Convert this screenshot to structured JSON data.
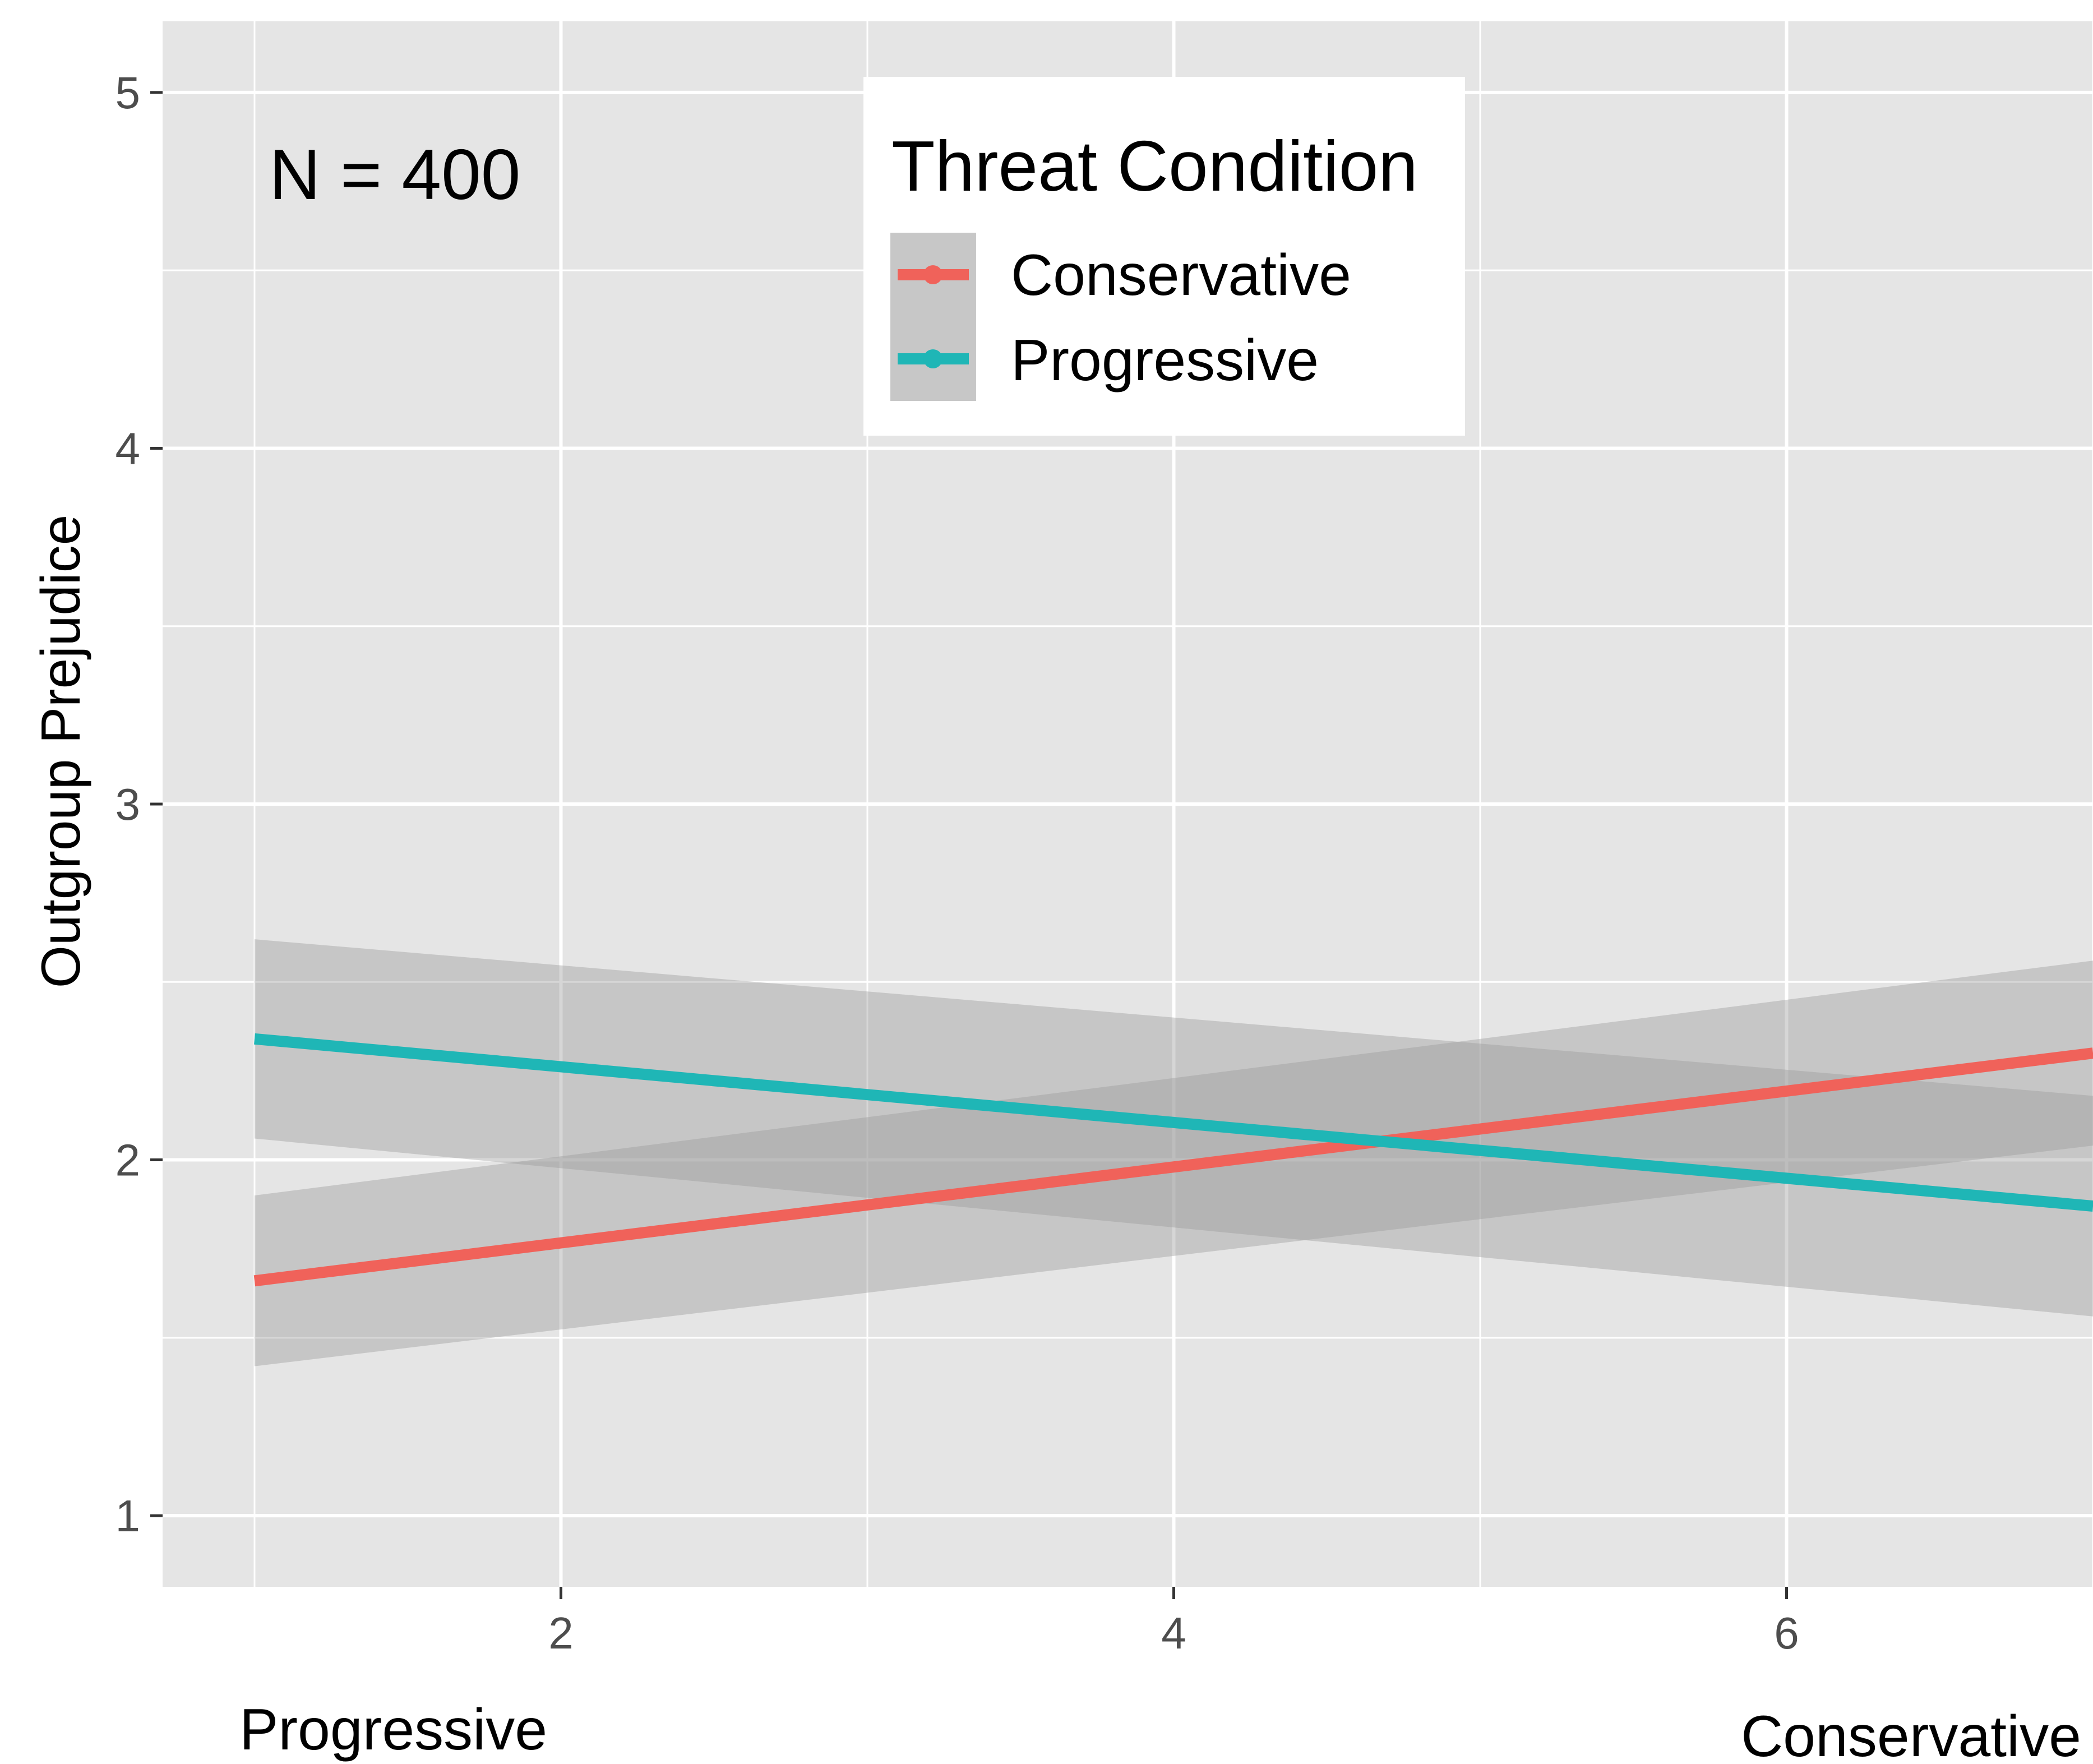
{
  "chart_data": {
    "type": "line",
    "title": "",
    "xlabel": "",
    "ylabel": "Outgroup Prejudice",
    "xlim": [
      0.7,
      7.0
    ],
    "ylim": [
      0.8,
      5.2
    ],
    "x_ticks": [
      2,
      4,
      6
    ],
    "y_ticks": [
      1,
      2,
      3,
      4,
      5
    ],
    "x_minor": [
      1,
      3,
      5,
      7
    ],
    "y_minor": [
      1.5,
      2.5,
      3.5,
      4.5
    ],
    "grid": true,
    "panel_background": "#e5e5e5",
    "grid_color": "#ffffff",
    "ribbon_color": "#999999",
    "x_end_labels": {
      "left": "Progressive",
      "right": "Conservative"
    },
    "annotation": "N = 400",
    "legend": {
      "title": "Threat Condition",
      "position": "top-center",
      "entries": [
        "Conservative",
        "Progressive"
      ]
    },
    "series": [
      {
        "name": "Conservative",
        "color": "#f0625a",
        "x": [
          1,
          7
        ],
        "y": [
          1.66,
          2.3
        ],
        "lower": [
          1.42,
          2.04
        ],
        "upper": [
          1.9,
          2.56
        ]
      },
      {
        "name": "Progressive",
        "color": "#1fb6b6",
        "x": [
          1,
          7
        ],
        "y": [
          2.34,
          1.87
        ],
        "lower": [
          2.06,
          1.56
        ],
        "upper": [
          2.62,
          2.18
        ]
      }
    ]
  }
}
